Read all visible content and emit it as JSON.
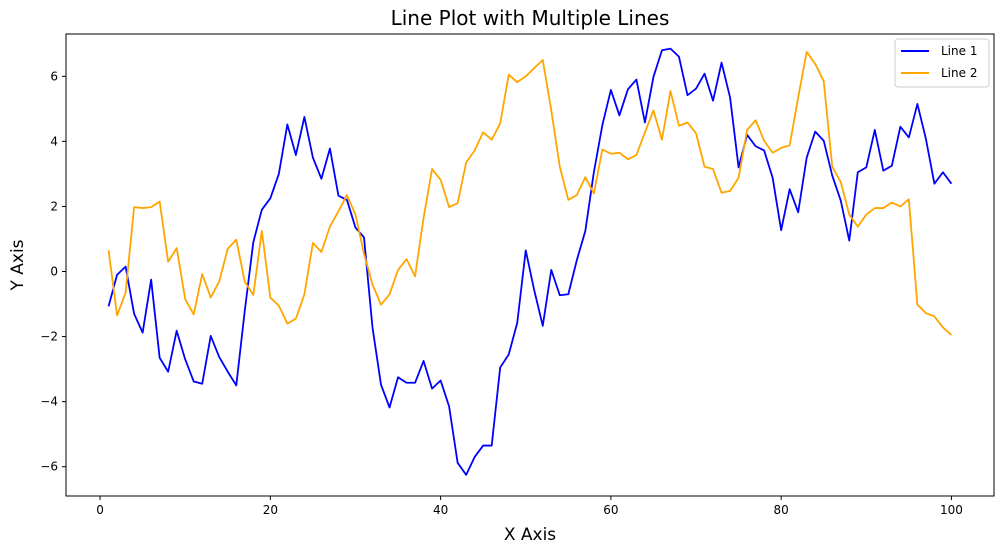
{
  "chart_data": {
    "type": "line",
    "title": "Line Plot with Multiple Lines",
    "xlabel": "X Axis",
    "ylabel": "Y Axis",
    "xlim": [
      -4,
      105
    ],
    "ylim": [
      -6.9,
      7.3
    ],
    "xticks": [
      0,
      20,
      40,
      60,
      80,
      100
    ],
    "yticks": [
      -6,
      -4,
      -2,
      0,
      2,
      4,
      6
    ],
    "xtick_labels": [
      "0",
      "20",
      "40",
      "60",
      "80",
      "100"
    ],
    "ytick_labels": [
      "−6",
      "−4",
      "−2",
      "0",
      "2",
      "4",
      "6"
    ],
    "grid": false,
    "legend_position": "top-right",
    "x": [
      1,
      2,
      3,
      4,
      5,
      6,
      7,
      8,
      9,
      10,
      11,
      12,
      13,
      14,
      15,
      16,
      17,
      18,
      19,
      20,
      21,
      22,
      23,
      24,
      25,
      26,
      27,
      28,
      29,
      30,
      31,
      32,
      33,
      34,
      35,
      36,
      37,
      38,
      39,
      40,
      41,
      42,
      43,
      44,
      45,
      46,
      47,
      48,
      49,
      50,
      51,
      52,
      53,
      54,
      55,
      56,
      57,
      58,
      59,
      60,
      61,
      62,
      63,
      64,
      65,
      66,
      67,
      68,
      69,
      70,
      71,
      72,
      73,
      74,
      75,
      76,
      77,
      78,
      79,
      80,
      81,
      82,
      83,
      84,
      85,
      86,
      87,
      88,
      89,
      90,
      91,
      92,
      93,
      94,
      95,
      96,
      97,
      98,
      99,
      100
    ],
    "series": [
      {
        "name": "Line 1",
        "color": "#0000ff",
        "values": [
          -1.07,
          -0.1,
          0.15,
          -1.3,
          -1.88,
          -0.25,
          -2.65,
          -3.08,
          -1.82,
          -2.7,
          -3.38,
          -3.45,
          -1.98,
          -2.63,
          -3.08,
          -3.5,
          -1.2,
          0.9,
          1.9,
          2.25,
          3.0,
          4.52,
          3.58,
          4.75,
          3.5,
          2.85,
          3.78,
          2.33,
          2.2,
          1.35,
          1.05,
          -1.72,
          -3.48,
          -4.18,
          -3.25,
          -3.42,
          -3.42,
          -2.75,
          -3.6,
          -3.35,
          -4.15,
          -5.88,
          -6.25,
          -5.7,
          -5.35,
          -5.35,
          -2.95,
          -2.55,
          -1.58,
          0.65,
          -0.58,
          -1.67,
          0.05,
          -0.73,
          -0.7,
          0.35,
          1.25,
          3.05,
          4.5,
          5.58,
          4.8,
          5.6,
          5.9,
          4.58,
          5.98,
          6.8,
          6.85,
          6.6,
          5.42,
          5.62,
          6.08,
          5.25,
          6.42,
          5.35,
          3.2,
          4.2,
          3.85,
          3.72,
          2.88,
          1.27,
          2.53,
          1.82,
          3.5,
          4.3,
          4.02,
          2.95,
          2.18,
          0.95,
          3.05,
          3.2,
          4.35,
          3.1,
          3.25,
          4.45,
          4.12,
          5.15,
          4.08,
          2.7,
          3.05,
          2.7
        ]
      },
      {
        "name": "Line 2",
        "color": "#ffa500",
        "values": [
          0.65,
          -1.35,
          -0.65,
          1.98,
          1.95,
          1.98,
          2.15,
          0.3,
          0.72,
          -0.85,
          -1.32,
          -0.08,
          -0.8,
          -0.3,
          0.7,
          0.98,
          -0.32,
          -0.72,
          1.25,
          -0.8,
          -1.05,
          -1.6,
          -1.45,
          -0.7,
          0.88,
          0.6,
          1.38,
          1.85,
          2.35,
          1.75,
          0.55,
          -0.4,
          -1.02,
          -0.7,
          0.05,
          0.38,
          -0.15,
          1.65,
          3.15,
          2.82,
          1.98,
          2.1,
          3.35,
          3.72,
          4.28,
          4.05,
          4.55,
          6.05,
          5.82,
          6.0,
          6.25,
          6.5,
          4.95,
          3.22,
          2.2,
          2.35,
          2.9,
          2.4,
          3.75,
          3.62,
          3.65,
          3.45,
          3.58,
          4.28,
          4.95,
          4.05,
          5.55,
          4.48,
          4.58,
          4.25,
          3.22,
          3.15,
          2.42,
          2.48,
          2.88,
          4.35,
          4.65,
          4.02,
          3.65,
          3.8,
          3.88,
          5.35,
          6.75,
          6.38,
          5.85,
          3.22,
          2.75,
          1.75,
          1.38,
          1.75,
          1.95,
          1.95,
          2.12,
          2.0,
          2.22,
          -1.02,
          -1.28,
          -1.38,
          -1.72,
          -1.95
        ]
      }
    ]
  }
}
